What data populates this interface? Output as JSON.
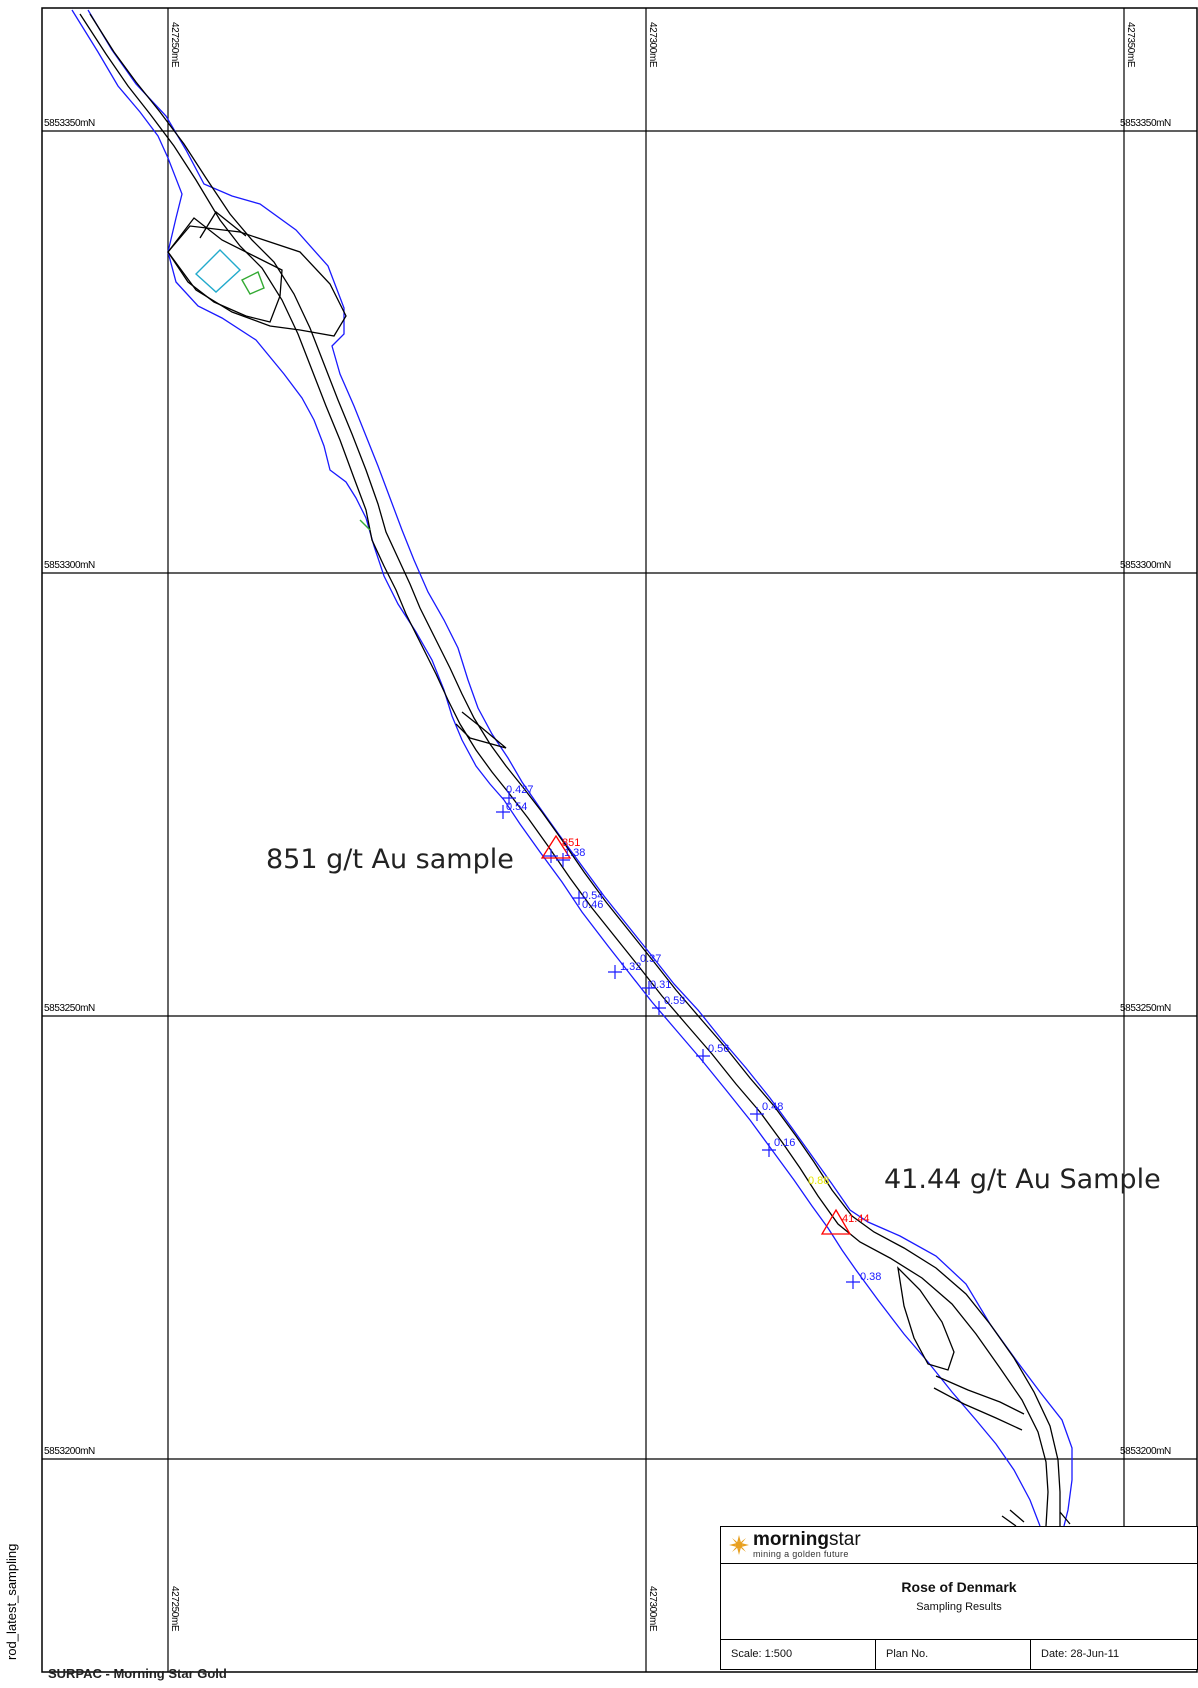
{
  "map": {
    "eastings": [
      "427250mE",
      "427300mE",
      "427350mE"
    ],
    "northings": [
      "5853350mN",
      "5853300mN",
      "5853250mN",
      "5853200mN"
    ],
    "side_label": "rod_latest_sampling",
    "credit": "SURPAC - Morning Star Gold",
    "callouts": {
      "sample_851": "851 g/t Au sample",
      "sample_4144": "41.44 g/t Au Sample"
    },
    "assays": [
      {
        "id": "a1",
        "text": "0.427",
        "color": "blue"
      },
      {
        "id": "a2",
        "text": "0.54",
        "color": "blue"
      },
      {
        "id": "a3",
        "text": "851",
        "color": "red"
      },
      {
        "id": "a4",
        "text": "1.38",
        "color": "blue"
      },
      {
        "id": "a5",
        "text": "0.54",
        "color": "blue"
      },
      {
        "id": "a6",
        "text": "0.46",
        "color": "blue"
      },
      {
        "id": "a7",
        "text": "0.37",
        "color": "blue"
      },
      {
        "id": "a8",
        "text": "1.32",
        "color": "blue"
      },
      {
        "id": "a9",
        "text": "0.31",
        "color": "blue"
      },
      {
        "id": "a10",
        "text": "0.59",
        "color": "blue"
      },
      {
        "id": "a11",
        "text": "0.56",
        "color": "blue"
      },
      {
        "id": "a12",
        "text": "0.48",
        "color": "blue"
      },
      {
        "id": "a13",
        "text": "0.16",
        "color": "blue"
      },
      {
        "id": "a14",
        "text": "0.88",
        "color": "yellow"
      },
      {
        "id": "a15",
        "text": "41.44",
        "color": "red"
      },
      {
        "id": "a16",
        "text": "0.38",
        "color": "blue"
      }
    ],
    "colors": {
      "outline_blue": "#1a1aff",
      "drive_black": "#000000",
      "high_grade_red": "#ff0000",
      "cyan_block": "#22aacc",
      "green_block": "#33aa33",
      "yellow_label": "#e6e600"
    }
  },
  "titleblock": {
    "brand_bold": "morning",
    "brand_light": "star",
    "tagline": "mining a golden future",
    "project": "Rose of Denmark",
    "subtitle": "Sampling Results",
    "scale": "Scale: 1:500",
    "plan_no": "Plan No.",
    "date": "Date: 28-Jun-11"
  }
}
